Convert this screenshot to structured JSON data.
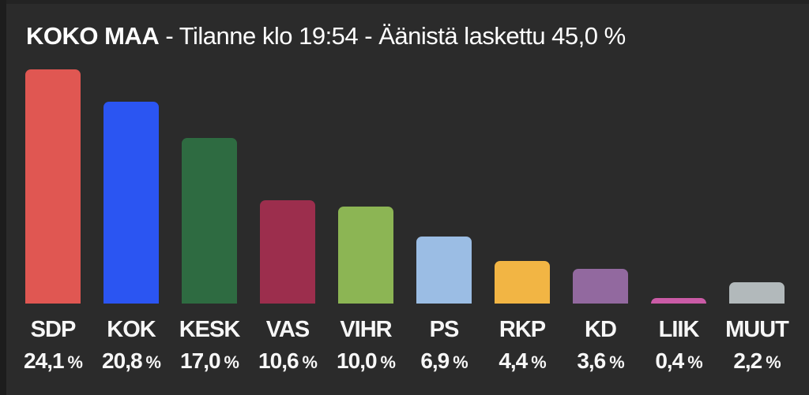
{
  "header": {
    "region_label": "KOKO MAA",
    "status_text": " - Tilanne klo 19:54 - Äänistä laskettu 45,0 %"
  },
  "colors": {
    "background": "#2b2b2b",
    "left_edge": "#1d1d1d",
    "top_edge": "#232323",
    "text": "#f7f7f7"
  },
  "chart_data": {
    "type": "bar",
    "title": "KOKO MAA - Tilanne klo 19:54 - Äänistä laskettu 45,0 %",
    "categories": [
      "SDP",
      "KOK",
      "KESK",
      "VAS",
      "VIHR",
      "PS",
      "RKP",
      "KD",
      "LIIK",
      "MUUT"
    ],
    "values": [
      24.1,
      20.8,
      17.0,
      10.6,
      10.0,
      6.9,
      4.4,
      3.6,
      0.4,
      2.2
    ],
    "value_labels": [
      "24,1",
      "20,8",
      "17,0",
      "10,6",
      "10,0",
      "6,9",
      "4,4",
      "3,6",
      "0,4",
      "2,2"
    ],
    "unit_suffix": "%",
    "bar_colors": [
      "#e05752",
      "#2b55f2",
      "#2e6b41",
      "#9c2e4d",
      "#8cb554",
      "#9bbde4",
      "#f2b544",
      "#92699f",
      "#ca5ba6",
      "#b2b9bb"
    ],
    "ylim": [
      0,
      24.1
    ],
    "xlabel": "",
    "ylabel": "",
    "grid": false,
    "legend": false
  }
}
